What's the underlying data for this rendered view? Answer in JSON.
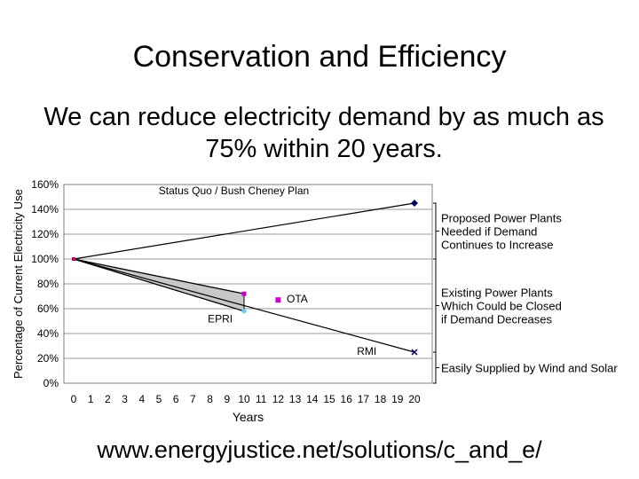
{
  "slide": {
    "title": "Conservation and Efficiency",
    "subtitle": "We can reduce electricity demand by as much as 75% within 20 years.",
    "footer": "www.energyjustice.net/solutions/c_and_e/"
  },
  "chart_data": {
    "type": "line",
    "title": "",
    "xlabel": "Years",
    "ylabel": "Percentage of Current Electricity Use",
    "xlim": [
      0,
      20
    ],
    "ylim": [
      0,
      160
    ],
    "x_ticks": [
      0,
      1,
      2,
      3,
      4,
      5,
      6,
      7,
      8,
      9,
      10,
      11,
      12,
      13,
      14,
      15,
      16,
      17,
      18,
      19,
      20
    ],
    "y_ticks": [
      "0%",
      "20%",
      "40%",
      "60%",
      "80%",
      "100%",
      "120%",
      "140%",
      "160%"
    ],
    "grid": "horizontal",
    "series": [
      {
        "name": "Status Quo / Bush Cheney Plan",
        "x": [
          0,
          20
        ],
        "y": [
          100,
          145
        ],
        "color": "#000000",
        "marker": "diamond",
        "marker_color": "#000066"
      },
      {
        "name": "RMI",
        "x": [
          0,
          20
        ],
        "y": [
          100,
          25
        ],
        "color": "#000000",
        "marker": "x",
        "marker_color": "#000066"
      },
      {
        "name": "EPRI",
        "x": [
          0,
          10
        ],
        "y": [
          100,
          58
        ],
        "color": "#000000",
        "marker": "circle",
        "marker_color": "#66ccff"
      },
      {
        "name": "OTA",
        "x": [
          0,
          10
        ],
        "y": [
          100,
          72
        ],
        "color": "#000000",
        "marker": "square",
        "marker_color": "#cc00cc"
      }
    ],
    "ota_point": {
      "x": 12,
      "y": 67,
      "color": "#cc00cc"
    },
    "shaded_area": {
      "between": [
        "EPRI",
        "OTA"
      ],
      "color": "#c8c8c8"
    },
    "brackets": [
      {
        "from": 100,
        "to": 145,
        "label_lines": [
          "Proposed Power Plants",
          "Needed if Demand",
          "Continues to Increase"
        ]
      },
      {
        "from": 25,
        "to": 100,
        "label_lines": [
          "Existing Power Plants",
          "Which Could be Closed",
          "if Demand Decreases"
        ]
      },
      {
        "from": 0,
        "to": 25,
        "label_lines": [
          "Easily Supplied by Wind and Solar"
        ]
      }
    ]
  }
}
